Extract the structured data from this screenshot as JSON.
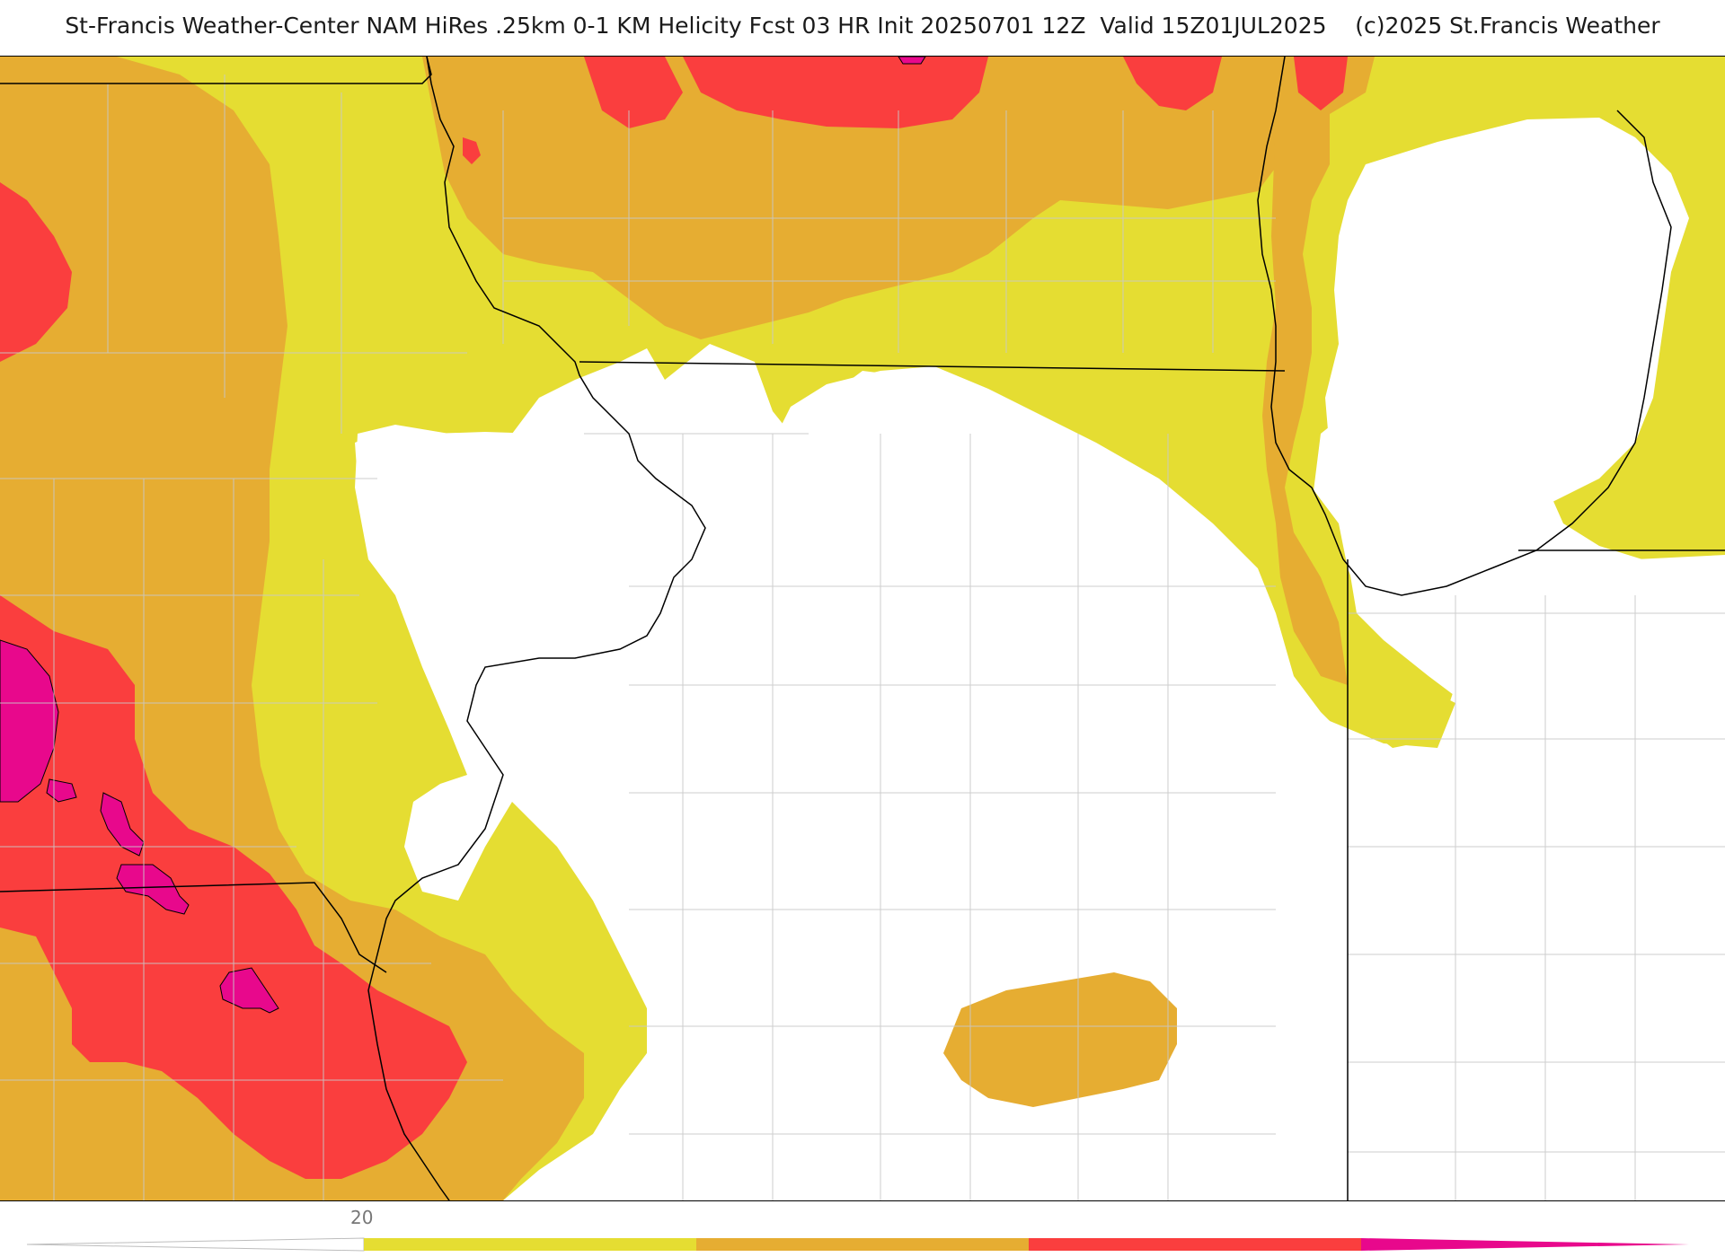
{
  "title": "St-Francis Weather-Center NAM HiRes .25km 0-1 KM Helicity Fcst 03 HR Init 20250701 12Z  Valid 15Z01JUL2025    (c)2025 St.Francis Weather",
  "legend": {
    "tick_value": "20",
    "bins": [
      {
        "color": "#e5dd32",
        "range": "20-40"
      },
      {
        "color": "#e6ad32",
        "range": "40-60"
      },
      {
        "color": "#fa3e3e",
        "range": "60-80"
      },
      {
        "color": "#e8088c",
        "range": "80+"
      }
    ]
  },
  "colors": {
    "yellow": "#e5dd32",
    "orange": "#e6ad32",
    "red": "#fa3e3e",
    "magenta": "#e8088c",
    "state_border": "#000000",
    "county_border": "#c8c8c8"
  }
}
